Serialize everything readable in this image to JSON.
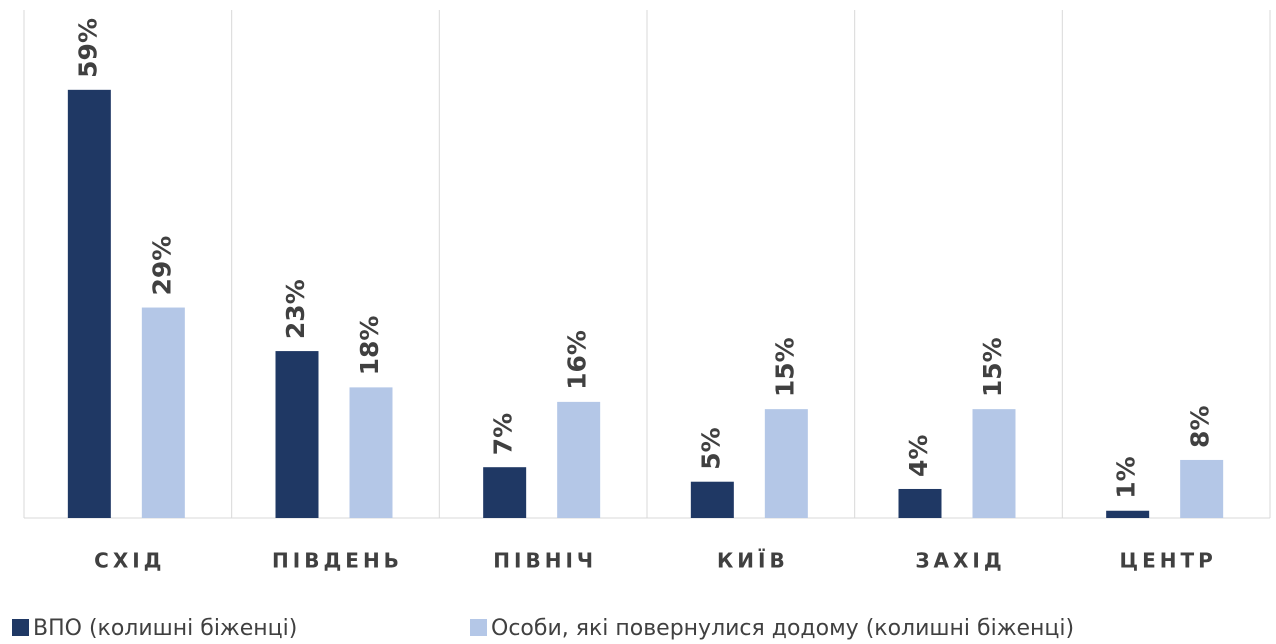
{
  "chart_data": {
    "type": "bar",
    "categories": [
      "СХІД",
      "ПІВДЕНЬ",
      "ПІВНІЧ",
      "КИЇВ",
      "ЗАХІД",
      "ЦЕНТР"
    ],
    "series": [
      {
        "name": "ВПО (колишні біженці)",
        "color": "#1f3864",
        "values": [
          59,
          23,
          7,
          5,
          4,
          1
        ],
        "value_labels": [
          "59%",
          "23%",
          "7%",
          "5%",
          "4%",
          "1%"
        ]
      },
      {
        "name": "Особи, які повернулися додому (колишні біженці)",
        "color": "#b4c7e7",
        "values": [
          29,
          18,
          16,
          15,
          15,
          8
        ],
        "value_labels": [
          "29%",
          "18%",
          "16%",
          "15%",
          "15%",
          "8%"
        ]
      }
    ],
    "ylim": [
      0,
      70
    ],
    "legend": "bottom"
  }
}
